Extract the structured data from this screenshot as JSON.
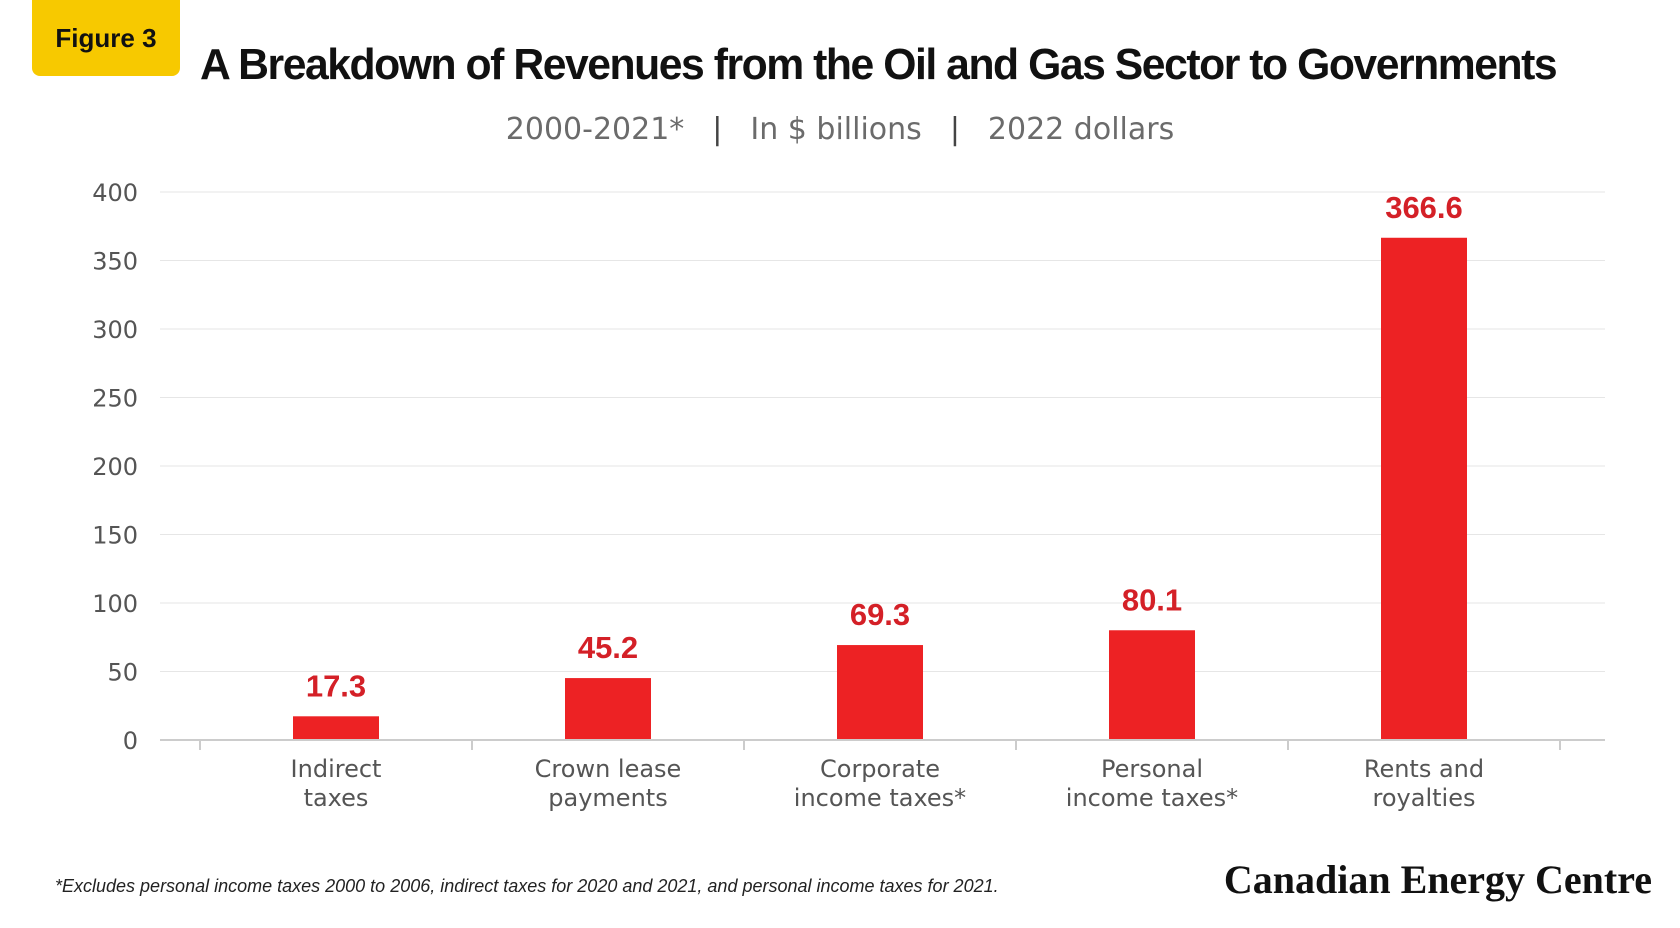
{
  "badge": "Figure 3",
  "title": "A Breakdown of Revenues from the Oil and Gas Sector to Governments",
  "subtitle": {
    "period": "2000-2021*",
    "unit": "In $ billions",
    "basis": "2022 dollars"
  },
  "footnote": "*Excludes personal income taxes 2000 to 2006, indirect taxes for 2020 and 2021, and personal income taxes for 2021.",
  "brand": "Canadian Energy Centre",
  "chart_data": {
    "type": "bar",
    "title": "A Breakdown of Revenues from the Oil and Gas Sector to Governments",
    "subtitle": "2000-2021* | In $ billions | 2022 dollars",
    "xlabel": "",
    "ylabel": "",
    "categories": [
      [
        "Indirect",
        "taxes"
      ],
      [
        "Crown lease",
        "payments"
      ],
      [
        "Corporate",
        "income taxes*"
      ],
      [
        "Personal",
        "income taxes*"
      ],
      [
        "Rents and",
        "royalties"
      ]
    ],
    "values": [
      17.3,
      45.2,
      69.3,
      80.1,
      366.6
    ],
    "value_labels": [
      "17.3",
      "45.2",
      "69.3",
      "80.1",
      "366.6"
    ],
    "yticks": [
      "0",
      "50",
      "100",
      "150",
      "200",
      "250",
      "300",
      "350",
      "400"
    ],
    "ylim": [
      0,
      400
    ],
    "grid": true,
    "legend": "none",
    "colors": {
      "bar": "#ed2224",
      "value_label": "#d42027",
      "grid": "#e6e6e6",
      "axis": "#cccccc",
      "tick_text": "#555555",
      "category_text": "#555555"
    }
  }
}
